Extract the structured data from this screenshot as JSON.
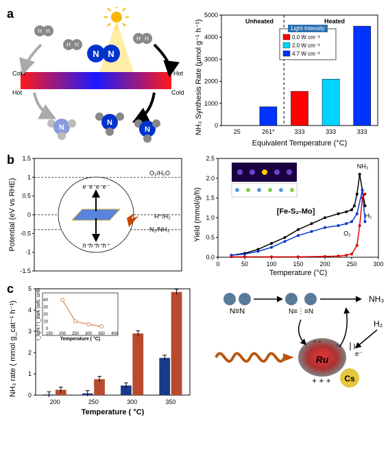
{
  "panel_a": {
    "label": "a",
    "schematic": {
      "cold_label": "Cold",
      "hot_label": "Hot",
      "n_atom": "N",
      "h_atom": "H",
      "sun_color": "#f7b500",
      "beam_color": "#ffe680",
      "n_color": "#0033cc",
      "h_color": "#888888",
      "gradient_left": "#ff1a1a",
      "gradient_right": "#1a1aff"
    },
    "chart": {
      "type": "bar",
      "ylabel": "NH₃ Synthesis Rate (μmol g⁻¹ h⁻¹)",
      "xlabel": "Equivalent Temperature (°C)",
      "ylim": [
        0,
        5000
      ],
      "ytick_step": 1000,
      "categories": [
        "25",
        "261*",
        "333",
        "333",
        "333"
      ],
      "values": [
        0,
        850,
        1550,
        2100,
        4500
      ],
      "colors": [
        "#ff0000",
        "#0033ff",
        "#ff0000",
        "#00d5ff",
        "#0033ff"
      ],
      "legend_title": "Light Intensity",
      "legend_items": [
        {
          "label": "0.0 W cm⁻²",
          "color": "#ff0000"
        },
        {
          "label": "2.0 W cm⁻²",
          "color": "#00d5ff"
        },
        {
          "label": "4.7 W cm⁻²",
          "color": "#0033ff"
        }
      ],
      "annotations": {
        "unheated": "Unheated",
        "heated": "Heated",
        "heated_color": "#ff0000"
      }
    }
  },
  "panel_b": {
    "label": "b",
    "potential": {
      "ylabel": "Potential (eV vs RHE)",
      "ylim": [
        1.5,
        -1.5
      ],
      "yticks": [
        -1.5,
        -1,
        -0.5,
        0,
        0.5,
        1,
        1.5
      ],
      "labels": {
        "top": "e⁻e⁻e⁻e⁻",
        "bottom": "h⁺h⁺h⁺h⁺",
        "n2nh3": "N₂/NH₃",
        "hh2": "H⁺/H₂",
        "o2h2o": "O₂/H₂O"
      }
    },
    "yield_chart": {
      "type": "line",
      "ylabel": "Yield (mmol/g/h)",
      "xlabel": "Temperature (°C)",
      "xlim": [
        0,
        300
      ],
      "xtick_step": 50,
      "ylim": [
        0,
        2.5
      ],
      "ytick_step": 0.5,
      "annotation": "[Fe-S₂-Mo]",
      "series": [
        {
          "name": "NH₃",
          "color": "#000000",
          "x": [
            25,
            50,
            75,
            100,
            125,
            150,
            175,
            200,
            225,
            240,
            250,
            255,
            260,
            265,
            270,
            275
          ],
          "y": [
            0.05,
            0.1,
            0.2,
            0.35,
            0.5,
            0.7,
            0.85,
            1.0,
            1.1,
            1.15,
            1.2,
            1.3,
            1.6,
            2.1,
            1.7,
            1.3
          ]
        },
        {
          "name": "O₂",
          "color": "#0033cc",
          "x": [
            25,
            50,
            75,
            100,
            125,
            150,
            175,
            200,
            225,
            240,
            250,
            260,
            270,
            275
          ],
          "y": [
            0.05,
            0.08,
            0.15,
            0.25,
            0.4,
            0.55,
            0.65,
            0.75,
            0.8,
            0.85,
            0.9,
            1.1,
            1.7,
            0.9
          ]
        },
        {
          "name": "H₂",
          "color": "#dd0000",
          "x": [
            25,
            50,
            100,
            150,
            200,
            225,
            240,
            250,
            260,
            265,
            270,
            275
          ],
          "y": [
            0.01,
            0.01,
            0.01,
            0.01,
            0.02,
            0.03,
            0.05,
            0.08,
            0.3,
            0.8,
            1.5,
            1.6
          ]
        }
      ]
    }
  },
  "panel_c": {
    "label": "c",
    "chart": {
      "type": "bar-grouped",
      "ylabel": "NH₃ rate ( mmol g_cat⁻¹ h⁻¹)",
      "xlabel": "Temperature ( °C)",
      "categories": [
        "200",
        "250",
        "300",
        "350"
      ],
      "ylim": [
        0,
        5
      ],
      "ytick_step": 1,
      "series": [
        {
          "color": "#1a3a8a",
          "values": [
            0.03,
            0.08,
            0.45,
            1.75
          ]
        },
        {
          "color": "#b84a2e",
          "values": [
            0.25,
            0.75,
            2.9,
            4.85
          ]
        }
      ],
      "inset": {
        "ylabel": "r_light / r_dark (arb. unit)",
        "xlabel": "Temperature ( °C)",
        "x": [
          200,
          250,
          300,
          350
        ],
        "y": [
          40,
          10,
          6,
          3
        ],
        "xlim": [
          150,
          400
        ],
        "ylim": [
          0,
          45
        ],
        "color": "#d88850"
      }
    },
    "mechanism": {
      "n_label": "N≡N",
      "nn_label": "N≡⋮≡N",
      "nh3": "NH₃",
      "h2": "H₂",
      "ru": "Ru",
      "cs": "Cs",
      "e": "e⁻",
      "ru_color": "#cc2020",
      "ru_outer": "#808080",
      "cs_color": "#e6c540"
    }
  }
}
